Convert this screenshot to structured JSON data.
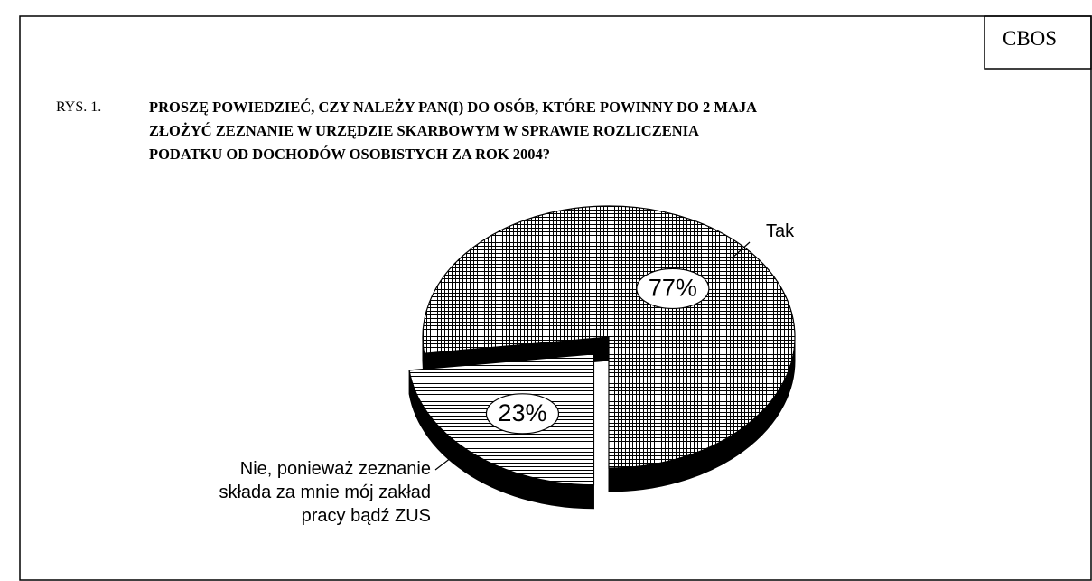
{
  "header": {
    "source": "CBOS",
    "figure": "RYS. 1."
  },
  "chart_data": {
    "type": "pie3d",
    "title": "PROSZĘ POWIEDZIEĆ, CZY NALEŻY PAN(I) DO OSÓB, KTÓRE POWINNY DO 2 MAJA\nZŁOŻYĆ ZEZNANIE W URZĘDZIE SKARBOWYM W SPRAWIE ROZLICZENIA\nPODATKU OD DOCHODÓW OSOBISTYCH ZA ROK 2004?",
    "categories": [
      "Tak",
      "Nie, ponieważ zeznanie\nskłada za mnie mój zakład\npracy bądź ZUS"
    ],
    "values": [
      77,
      23
    ],
    "value_labels": [
      "77%",
      "23%"
    ]
  }
}
